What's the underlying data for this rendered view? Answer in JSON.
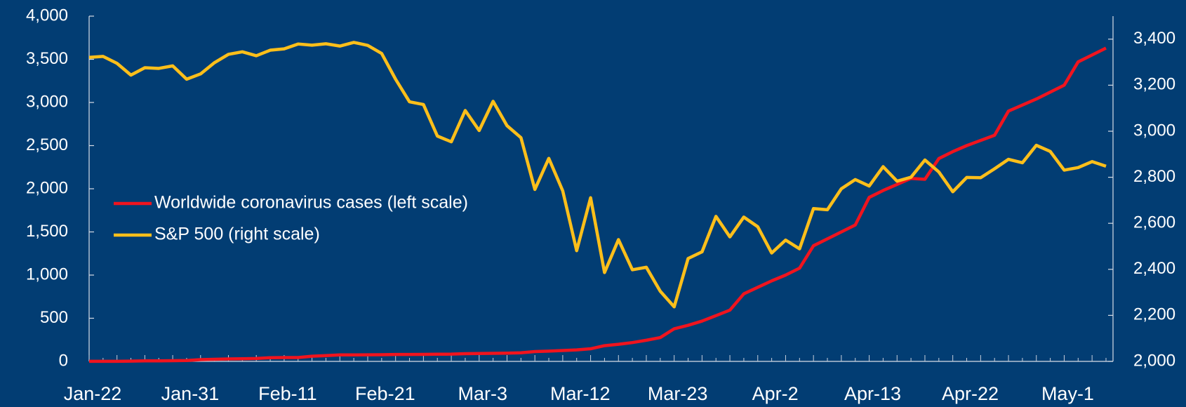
{
  "chart_data": {
    "type": "line",
    "categories": [
      "Jan-22",
      null,
      null,
      null,
      null,
      null,
      null,
      "Jan-31",
      null,
      null,
      null,
      null,
      null,
      null,
      "Feb-11",
      null,
      null,
      null,
      null,
      null,
      null,
      "Feb-21",
      null,
      null,
      null,
      null,
      null,
      null,
      "Mar-3",
      null,
      null,
      null,
      null,
      null,
      null,
      "Mar-12",
      null,
      null,
      null,
      null,
      null,
      null,
      "Mar-23",
      null,
      null,
      null,
      null,
      null,
      null,
      "Apr-2",
      null,
      null,
      null,
      null,
      null,
      null,
      "Apr-13",
      null,
      null,
      null,
      null,
      null,
      null,
      "Apr-22",
      null,
      null,
      null,
      null,
      null,
      null,
      "May-1",
      null,
      null,
      null
    ],
    "series": [
      {
        "name": "Worldwide coronavirus cases (left scale)",
        "color": "#f0141e",
        "axis": "y",
        "values": [
          0.6,
          0.6,
          0.9,
          2.9,
          5.6,
          6.2,
          8.2,
          9.9,
          20,
          24,
          28,
          31,
          34,
          43,
          45,
          45,
          60,
          67,
          75,
          75,
          76,
          77,
          80,
          80,
          81,
          83,
          84,
          89,
          91,
          93,
          96,
          100,
          114,
          119,
          126,
          133,
          146,
          182,
          198,
          218,
          245,
          276,
          378,
          418,
          467,
          530,
          594,
          783,
          858,
          933,
          1000,
          1080,
          1340,
          1420,
          1500,
          1580,
          1900,
          1980,
          2050,
          2120,
          2110,
          2350,
          2430,
          2500,
          2560,
          2620,
          2900,
          2970,
          3040,
          3120,
          3200,
          3470,
          3550,
          3630
        ]
      },
      {
        "name": "S&P 500 (right scale)",
        "color": "#ffbf1a",
        "axis": "y2",
        "values": [
          3321,
          3325,
          3295,
          3244,
          3276,
          3273,
          3284,
          3226,
          3249,
          3298,
          3334,
          3345,
          3328,
          3352,
          3358,
          3379,
          3374,
          3380,
          3370,
          3386,
          3373,
          3338,
          3226,
          3128,
          3116,
          2979,
          2954,
          3090,
          3003,
          3130,
          3024,
          2972,
          2747,
          2882,
          2741,
          2481,
          2711,
          2386,
          2529,
          2398,
          2409,
          2305,
          2237,
          2447,
          2476,
          2630,
          2541,
          2627,
          2585,
          2471,
          2527,
          2489,
          2664,
          2659,
          2750,
          2790,
          2762,
          2846,
          2783,
          2800,
          2875,
          2823,
          2737,
          2799,
          2798,
          2837,
          2878,
          2863,
          2939,
          2912,
          2831,
          2842,
          2868,
          2848
        ]
      }
    ],
    "ylim": [
      0,
      4000
    ],
    "yticks": [
      0,
      500,
      {
        "value": 1000,
        "label": "1,000"
      },
      {
        "value": 1500,
        "label": "1,500"
      },
      {
        "value": 2000,
        "label": "2,000"
      },
      {
        "value": 2500,
        "label": "2,500"
      },
      {
        "value": 3000,
        "label": "3,000"
      },
      {
        "value": 3500,
        "label": "3,500"
      },
      {
        "value": 4000,
        "label": "4,000"
      }
    ],
    "y2lim": [
      2000,
      3500
    ],
    "y2ticks": [
      {
        "value": 2000,
        "label": "2,000"
      },
      {
        "value": 2200,
        "label": "2,200"
      },
      {
        "value": 2400,
        "label": "2,400"
      },
      {
        "value": 2600,
        "label": "2,600"
      },
      {
        "value": 2800,
        "label": "2,800"
      },
      {
        "value": 3000,
        "label": "3,000"
      },
      {
        "value": 3200,
        "label": "3,200"
      },
      {
        "value": 3400,
        "label": "3,400"
      }
    ],
    "grid": false,
    "legend": "left"
  }
}
